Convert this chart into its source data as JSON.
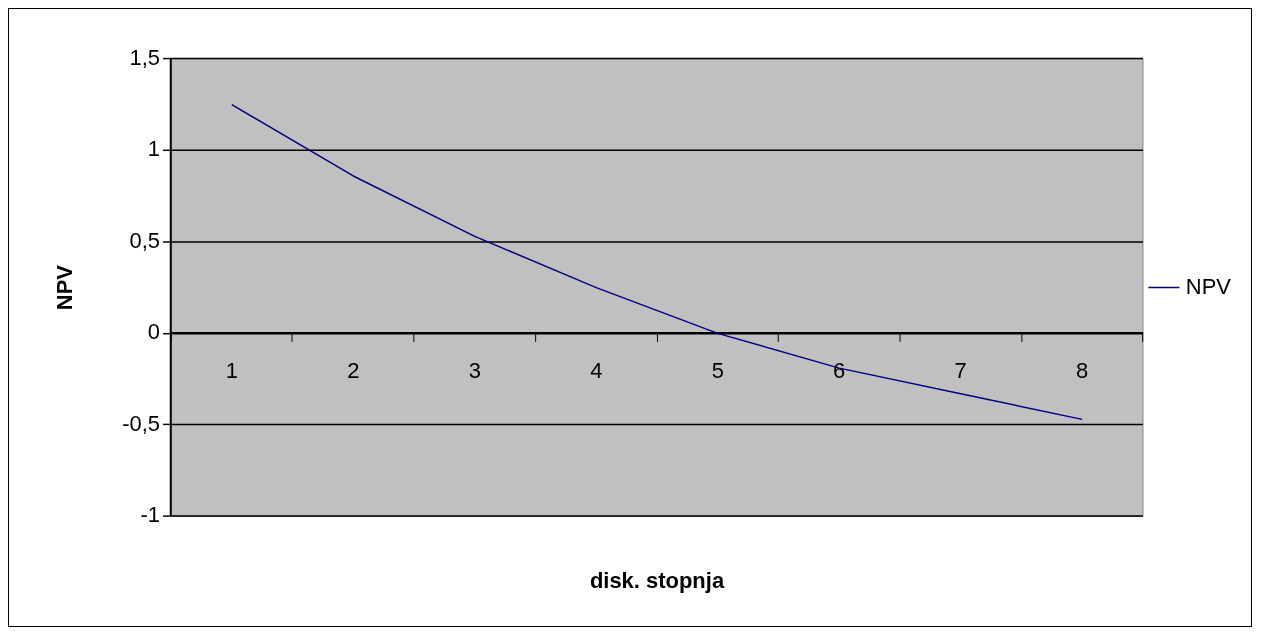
{
  "chart_data": {
    "type": "line",
    "xlabel": "disk. stopnja",
    "ylabel": "NPV",
    "categories": [
      "1",
      "2",
      "3",
      "4",
      "5",
      "6",
      "7",
      "8"
    ],
    "series": [
      {
        "name": "NPV",
        "color": "#000080",
        "values": [
          1.25,
          0.86,
          0.53,
          0.25,
          0.0,
          -0.19,
          -0.33,
          -0.47
        ]
      }
    ],
    "ylim": [
      -1,
      1.5
    ],
    "yticks": [
      {
        "value": -1,
        "label": "-1"
      },
      {
        "value": -0.5,
        "label": "-0,5"
      },
      {
        "value": 0,
        "label": "0"
      },
      {
        "value": 0.5,
        "label": "0,5"
      },
      {
        "value": 1,
        "label": "1"
      },
      {
        "value": 1.5,
        "label": "1,5"
      }
    ],
    "grid": "y",
    "legend": "right",
    "marker": "none",
    "line_style": "solid"
  }
}
